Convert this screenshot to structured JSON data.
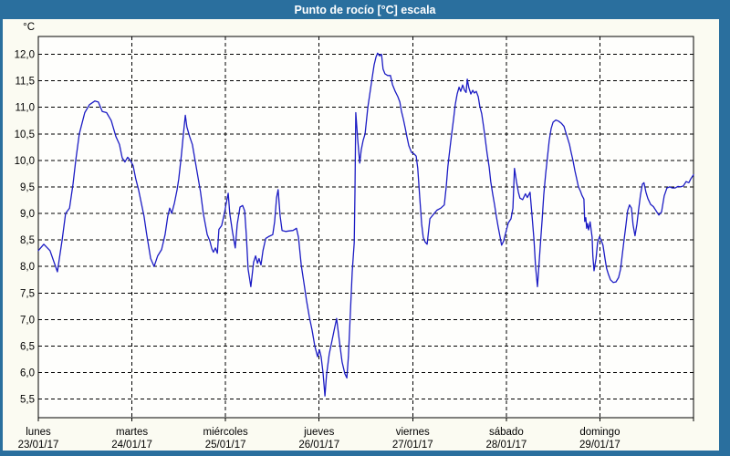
{
  "window": {
    "title": "Punto de rocío [°C] escala"
  },
  "colors": {
    "accent": "#2a6f9e",
    "window_bg": "#fbfbf2",
    "plot_bg": "#fefefc",
    "grid": "#000000",
    "text": "#000000",
    "series_line": "#1c1cc4"
  },
  "chart_data": {
    "type": "line",
    "title": "Punto de rocío [°C] escala",
    "unit_label": "°C",
    "ylim": [
      5.5,
      12.0
    ],
    "y_tick_step": 0.5,
    "y_tick_labels": [
      "12,0",
      "11,5",
      "11,0",
      "10,5",
      "10,0",
      "9,5",
      "9,0",
      "8,5",
      "8,0",
      "7,5",
      "7,0",
      "6,5",
      "6,0",
      "5,5"
    ],
    "y_tick_values": [
      12.0,
      11.5,
      11.0,
      10.5,
      10.0,
      9.5,
      9.0,
      8.5,
      8.0,
      7.5,
      7.0,
      6.5,
      6.0,
      5.5
    ],
    "grid": "dashed",
    "legend_position": "none",
    "x_axis_days": [
      {
        "name": "lunes",
        "date": "23/01/17"
      },
      {
        "name": "martes",
        "date": "24/01/17"
      },
      {
        "name": "miércoles",
        "date": "25/01/17"
      },
      {
        "name": "jueves",
        "date": "26/01/17"
      },
      {
        "name": "viernes",
        "date": "27/01/17"
      },
      {
        "name": "sábado",
        "date": "28/01/17"
      },
      {
        "name": "domingo",
        "date": "29/01/17"
      }
    ],
    "x_hours_range": [
      0,
      168
    ],
    "series": [
      {
        "name": "Punto de rocío [°C]",
        "x_hours": [
          0,
          1.4,
          3,
          4.9,
          6.1,
          7,
          8,
          8.9,
          9.6,
          10.5,
          11.9,
          13.1,
          14.5,
          15.4,
          16.4,
          17.5,
          18.7,
          19.9,
          20.8,
          21.5,
          22.2,
          22.9,
          23.6,
          24.3,
          25,
          25.7,
          26.4,
          27.1,
          27.8,
          28.8,
          29.7,
          30.6,
          31.6,
          32.5,
          33.2,
          33.7,
          34.2,
          34.9,
          35.6,
          36,
          36.7,
          37.2,
          37.7,
          38.1,
          38.8,
          39.5,
          40.2,
          40.9,
          41.6,
          42.3,
          43.3,
          44,
          44.5,
          44.9,
          45.4,
          45.9,
          46.3,
          47,
          47.7,
          48.2,
          48.7,
          49.1,
          49.8,
          50.5,
          51,
          51.7,
          52.4,
          52.9,
          53.3,
          53.8,
          54.5,
          55.2,
          55.7,
          56.2,
          56.6,
          57.1,
          57.6,
          58.3,
          59.2,
          60.1,
          60.6,
          61.1,
          61.5,
          62,
          62.5,
          63.4,
          64.3,
          65.3,
          66.2,
          66.7,
          67.4,
          68.1,
          68.8,
          69.5,
          70.2,
          70.9,
          71.6,
          72.1,
          72.5,
          73,
          73.5,
          73.9,
          74.6,
          75.3,
          76,
          76.5,
          77.2,
          77.9,
          78.6,
          79.1,
          79.5,
          80,
          80.5,
          81,
          81.2,
          81.4,
          81.9,
          82.4,
          82.8,
          83.3,
          83.8,
          84.5,
          85.2,
          85.6,
          86.1,
          86.6,
          87,
          87.5,
          88,
          88.4,
          88.9,
          89.6,
          90.3,
          90.8,
          91.5,
          92.2,
          92.7,
          93.1,
          93.6,
          94.1,
          94.5,
          95,
          95.7,
          96.4,
          96.9,
          97.3,
          97.8,
          98.3,
          98.7,
          99.2,
          99.7,
          100.4,
          101.3,
          102.2,
          103.2,
          104.1,
          104.6,
          105,
          105.5,
          106,
          106.5,
          106.9,
          107.4,
          107.9,
          108.3,
          108.8,
          109.3,
          109.7,
          110,
          110.4,
          110.9,
          111.4,
          111.8,
          112.3,
          112.8,
          113.2,
          113.7,
          114.2,
          114.6,
          115.1,
          115.6,
          116,
          116.5,
          117,
          117.4,
          117.9,
          118.4,
          118.8,
          119.3,
          119.8,
          120.5,
          121.2,
          121.7,
          122.1,
          122.6,
          123.1,
          123.5,
          124.2,
          124.9,
          125.4,
          126.1,
          126.6,
          127.1,
          127.5,
          128,
          128.7,
          129.2,
          129.6,
          130.1,
          130.6,
          131,
          131.5,
          132,
          132.7,
          133.4,
          134.1,
          134.8,
          135.2,
          135.7,
          136.2,
          136.6,
          137.1,
          137.6,
          138,
          138.5,
          139,
          139.4,
          139.9,
          140.1,
          140.4,
          140.6,
          140.8,
          141.1,
          141.5,
          142,
          142.2,
          142.5,
          143,
          143.4,
          143.9,
          144.3,
          144.8,
          145.3,
          145.7,
          146.2,
          146.7,
          147.4,
          148.1,
          148.8,
          149.3,
          149.7,
          150.2,
          150.7,
          151.1,
          151.6,
          152.1,
          152.5,
          153,
          153.5,
          153.9,
          154.4,
          154.9,
          155.3,
          155.8,
          156.3,
          157,
          157.7,
          158.4,
          159.1,
          159.8,
          160.5,
          161.2,
          161.9,
          162.6,
          163.3,
          164,
          164.7,
          165.4,
          166.1,
          166.8,
          167.3,
          168
        ],
        "values": [
          8.3,
          8.42,
          8.3,
          7.9,
          8.5,
          9,
          9.1,
          9.55,
          10,
          10.5,
          10.9,
          11.05,
          11.12,
          11.1,
          10.92,
          10.9,
          10.75,
          10.45,
          10.3,
          10.05,
          9.97,
          10.06,
          10,
          9.9,
          9.65,
          9.45,
          9.2,
          8.95,
          8.6,
          8.15,
          8,
          8.2,
          8.32,
          8.6,
          8.95,
          9.1,
          9,
          9.2,
          9.45,
          9.65,
          10.1,
          10.5,
          10.85,
          10.63,
          10.45,
          10.3,
          10,
          9.7,
          9.4,
          9,
          8.6,
          8.48,
          8.33,
          8.27,
          8.35,
          8.25,
          8.7,
          8.77,
          9,
          9.2,
          9.38,
          9,
          8.65,
          8.35,
          8.8,
          9.12,
          9.15,
          9.05,
          8.63,
          7.95,
          7.62,
          8.08,
          8.2,
          8.06,
          8.15,
          8.03,
          8.3,
          8.53,
          8.57,
          8.6,
          8.85,
          9.3,
          9.45,
          8.95,
          8.68,
          8.66,
          8.67,
          8.68,
          8.72,
          8.55,
          8.03,
          7.7,
          7.35,
          7.05,
          6.8,
          6.5,
          6.3,
          6.43,
          6.3,
          6,
          5.56,
          5.95,
          6.35,
          6.6,
          6.85,
          7.02,
          6.6,
          6.2,
          5.98,
          5.9,
          6.3,
          7.1,
          7.9,
          8.45,
          9.4,
          10.9,
          10.4,
          9.95,
          10.2,
          10.38,
          10.5,
          11,
          11.35,
          11.55,
          11.8,
          11.95,
          12.02,
          11.97,
          12,
          11.72,
          11.63,
          11.6,
          11.6,
          11.43,
          11.3,
          11.2,
          11.1,
          10.93,
          10.78,
          10.6,
          10.45,
          10.28,
          10.15,
          10.12,
          10.08,
          9.85,
          9.3,
          8.8,
          8.55,
          8.46,
          8.42,
          8.9,
          8.98,
          9.06,
          9.1,
          9.16,
          9.5,
          9.88,
          10.2,
          10.5,
          10.8,
          11.05,
          11.25,
          11.38,
          11.3,
          11.42,
          11.32,
          11.28,
          11.53,
          11.37,
          11.25,
          11.32,
          11.27,
          11.3,
          11.2,
          11.02,
          10.88,
          10.62,
          10.4,
          10.12,
          9.87,
          9.6,
          9.37,
          9.16,
          8.97,
          8.75,
          8.56,
          8.4,
          8.48,
          8.62,
          8.82,
          8.9,
          9.1,
          9.85,
          9.6,
          9.4,
          9.29,
          9.26,
          9.37,
          9.3,
          9.4,
          8.95,
          8.5,
          8,
          7.62,
          8.37,
          8.9,
          9.35,
          9.75,
          10.1,
          10.38,
          10.6,
          10.72,
          10.76,
          10.74,
          10.7,
          10.64,
          10.54,
          10.42,
          10.3,
          10.16,
          10,
          9.8,
          9.67,
          9.5,
          9.42,
          9.34,
          9.27,
          8.85,
          8.92,
          8.72,
          8.81,
          8.69,
          8.84,
          8.55,
          8.2,
          7.92,
          8.15,
          8.45,
          8.56,
          8.5,
          8.4,
          8.15,
          7.97,
          7.85,
          7.75,
          7.7,
          7.71,
          7.79,
          7.95,
          8.2,
          8.5,
          8.8,
          9.05,
          9.16,
          9.1,
          8.78,
          8.58,
          8.8,
          9.05,
          9.35,
          9.55,
          9.58,
          9.4,
          9.28,
          9.17,
          9.13,
          9.05,
          8.97,
          9.03,
          9.33,
          9.48,
          9.5,
          9.48,
          9.48,
          9.51,
          9.5,
          9.52,
          9.6,
          9.58,
          9.65,
          9.73
        ]
      }
    ]
  }
}
